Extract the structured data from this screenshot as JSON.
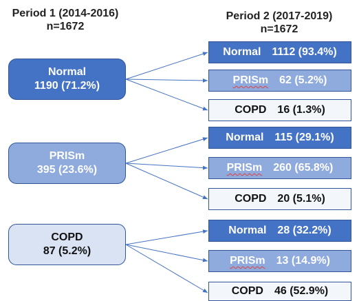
{
  "period1": {
    "title": "Period 1 (2014-2016)",
    "n": "n=1672"
  },
  "period2": {
    "title": "Period 2 (2017-2019)",
    "n": "n=1672"
  },
  "groups": [
    {
      "label": "Normal",
      "value": "1190 (71.2%)",
      "outcomes": [
        {
          "label": "Normal",
          "value": "1112 (93.4%)"
        },
        {
          "label": "PRISm",
          "value": "62 (5.2%)"
        },
        {
          "label": "COPD",
          "value": "16 (1.3%)"
        }
      ]
    },
    {
      "label": "PRISm",
      "value": "395 (23.6%)",
      "outcomes": [
        {
          "label": "Normal",
          "value": "115 (29.1%)"
        },
        {
          "label": "PRISm",
          "value": "260 (65.8%)"
        },
        {
          "label": "COPD",
          "value": "20 (5.1%)"
        }
      ]
    },
    {
      "label": "COPD",
      "value": "87 (5.2%)",
      "outcomes": [
        {
          "label": "Normal",
          "value": "28 (32.2%)"
        },
        {
          "label": "PRISm",
          "value": "13 (14.9%)"
        },
        {
          "label": "COPD",
          "value": "46 (52.9%)"
        }
      ]
    }
  ]
}
